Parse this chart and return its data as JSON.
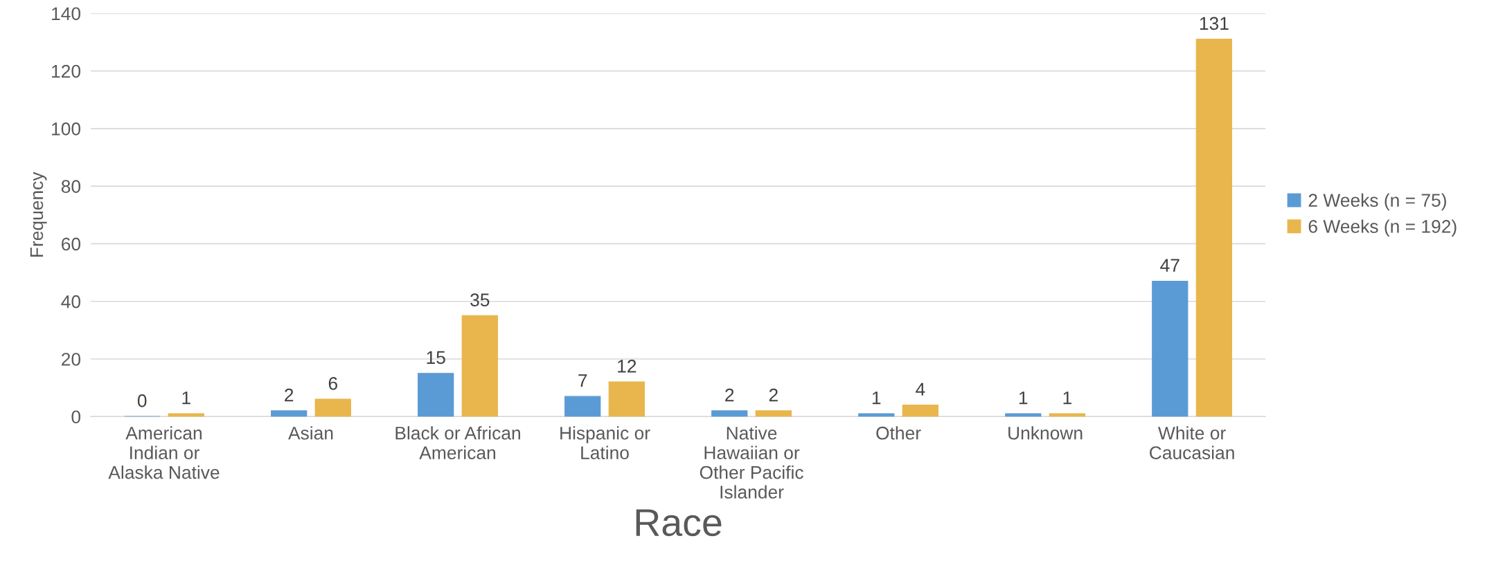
{
  "chart_data": {
    "type": "bar",
    "xlabel": "Race",
    "ylabel": "Frequency",
    "categories": [
      "American\nIndian or\nAlaska Native",
      "Asian",
      "Black or African\nAmerican",
      "Hispanic or\nLatino",
      "Native\nHawaiian or\nOther Pacific\nIslander",
      "Other",
      "Unknown",
      "White or\nCaucasian"
    ],
    "series": [
      {
        "name": "2 Weeks (n = 75)",
        "color": "#5b9bd5",
        "values": [
          0,
          2,
          15,
          7,
          2,
          1,
          1,
          47
        ]
      },
      {
        "name": "6 Weeks (n = 192)",
        "color": "#e8b64c",
        "values": [
          1,
          6,
          35,
          12,
          2,
          4,
          1,
          131
        ]
      }
    ],
    "ylim": [
      0,
      140
    ],
    "yticks": [
      0,
      20,
      40,
      60,
      80,
      100,
      120,
      140
    ],
    "grid": "y",
    "legend": "right",
    "data_labels": true
  }
}
